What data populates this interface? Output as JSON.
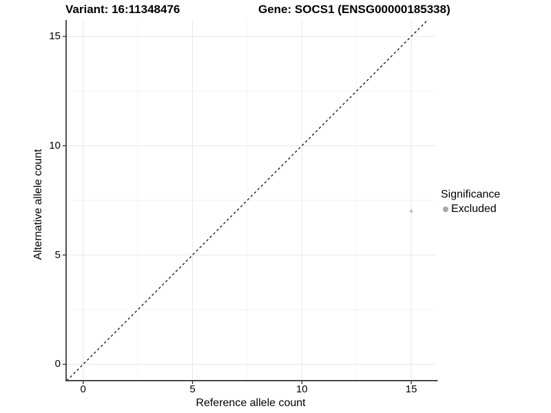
{
  "header": {
    "variant_title": "Variant: 16:11348476",
    "gene_title": "Gene: SOCS1 (ENSG00000185338)"
  },
  "chart_data": {
    "type": "scatter",
    "xlabel": "Reference allele count",
    "ylabel": "Alternative allele count",
    "x_major_ticks": [
      0,
      5,
      10,
      15
    ],
    "y_major_ticks": [
      0,
      5,
      10,
      15
    ],
    "x_minor_ticks": [
      2.5,
      7.5,
      12.5
    ],
    "y_minor_ticks": [
      2.5,
      7.5,
      12.5
    ],
    "xlim": [
      -0.78,
      16.15
    ],
    "ylim": [
      -0.75,
      15.75
    ],
    "grid": "major+minor",
    "points": [
      {
        "x": 15,
        "y": 7,
        "series": "Excluded"
      }
    ],
    "reference_line": {
      "style": "dashed",
      "slope": 1,
      "intercept": 0,
      "from": -0.75,
      "to": 15.72,
      "description": "identity line y = x"
    },
    "legend": {
      "title": "Significance",
      "position": "right",
      "entries": [
        {
          "label": "Excluded",
          "color": "#a6a6a6"
        }
      ]
    },
    "colors": {
      "background": "#ffffff",
      "grid_major": "#e7e7e7",
      "grid_minor": "#f3f3f3",
      "axis_line": "#2e2e2e",
      "tick_mark": "#2e2e2e",
      "dashed_line": "#0a0a0a",
      "point_fill": "#c4c4c4"
    }
  }
}
